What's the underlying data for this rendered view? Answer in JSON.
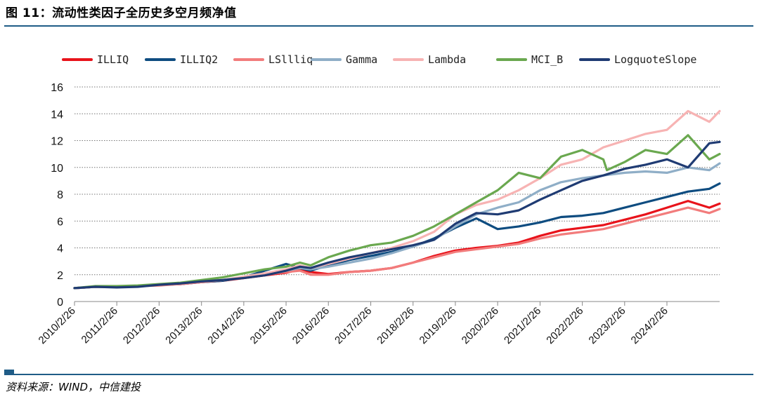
{
  "figure": {
    "title": "图 11：流动性类因子全历史多空月频净值",
    "source": "资料来源：WIND，中信建投"
  },
  "chart_data": {
    "type": "line",
    "title": "",
    "xlabel": "",
    "ylabel": "",
    "ylim": [
      0,
      16
    ],
    "yticks": [
      0,
      2,
      4,
      6,
      8,
      10,
      12,
      14,
      16
    ],
    "grid": "horizontal dotted",
    "legend_position": "top",
    "x_start": "2010-02-26",
    "x_end": "2025-05-26",
    "x_tick_labels": [
      "2010/2/26",
      "2011/2/26",
      "2012/2/26",
      "2013/2/26",
      "2014/2/26",
      "2015/2/26",
      "2016/2/26",
      "2017/2/26",
      "2018/2/26",
      "2019/2/26",
      "2020/2/26",
      "2021/2/26",
      "2022/2/26",
      "2023/2/26",
      "2024/2/26"
    ],
    "series": [
      {
        "name": "ILLIQ",
        "color": "#e8131b",
        "points": [
          [
            "2010-02",
            1.0
          ],
          [
            "2010-08",
            1.1
          ],
          [
            "2011-02",
            1.1
          ],
          [
            "2011-08",
            1.15
          ],
          [
            "2012-02",
            1.25
          ],
          [
            "2012-08",
            1.3
          ],
          [
            "2013-02",
            1.45
          ],
          [
            "2013-08",
            1.55
          ],
          [
            "2014-02",
            1.75
          ],
          [
            "2014-08",
            1.95
          ],
          [
            "2015-02",
            2.15
          ],
          [
            "2015-06",
            2.4
          ],
          [
            "2015-09",
            2.2
          ],
          [
            "2016-02",
            2.05
          ],
          [
            "2016-08",
            2.2
          ],
          [
            "2017-02",
            2.3
          ],
          [
            "2017-08",
            2.5
          ],
          [
            "2018-02",
            2.9
          ],
          [
            "2018-08",
            3.4
          ],
          [
            "2019-02",
            3.8
          ],
          [
            "2019-08",
            4.0
          ],
          [
            "2020-02",
            4.15
          ],
          [
            "2020-08",
            4.4
          ],
          [
            "2021-02",
            4.9
          ],
          [
            "2021-08",
            5.3
          ],
          [
            "2022-02",
            5.5
          ],
          [
            "2022-08",
            5.7
          ],
          [
            "2023-02",
            6.1
          ],
          [
            "2023-08",
            6.5
          ],
          [
            "2024-02",
            7.0
          ],
          [
            "2024-08",
            7.5
          ],
          [
            "2025-02",
            7.0
          ],
          [
            "2025-05",
            7.3
          ]
        ]
      },
      {
        "name": "ILLIQ2",
        "color": "#0e4c80",
        "points": [
          [
            "2010-02",
            1.0
          ],
          [
            "2010-08",
            1.1
          ],
          [
            "2011-02",
            1.1
          ],
          [
            "2011-08",
            1.15
          ],
          [
            "2012-02",
            1.25
          ],
          [
            "2012-08",
            1.3
          ],
          [
            "2013-02",
            1.45
          ],
          [
            "2013-08",
            1.55
          ],
          [
            "2014-02",
            1.8
          ],
          [
            "2014-08",
            2.3
          ],
          [
            "2015-02",
            2.8
          ],
          [
            "2015-06",
            2.5
          ],
          [
            "2015-09",
            2.3
          ],
          [
            "2016-02",
            2.7
          ],
          [
            "2016-08",
            3.1
          ],
          [
            "2017-02",
            3.4
          ],
          [
            "2017-08",
            3.7
          ],
          [
            "2018-02",
            4.1
          ],
          [
            "2018-08",
            4.7
          ],
          [
            "2019-02",
            5.5
          ],
          [
            "2019-08",
            6.2
          ],
          [
            "2020-02",
            5.4
          ],
          [
            "2020-08",
            5.6
          ],
          [
            "2021-02",
            5.9
          ],
          [
            "2021-08",
            6.3
          ],
          [
            "2022-02",
            6.4
          ],
          [
            "2022-08",
            6.6
          ],
          [
            "2023-02",
            7.0
          ],
          [
            "2023-08",
            7.4
          ],
          [
            "2024-02",
            7.8
          ],
          [
            "2024-08",
            8.2
          ],
          [
            "2025-02",
            8.4
          ],
          [
            "2025-05",
            8.8
          ]
        ]
      },
      {
        "name": "LSllliq",
        "color": "#f27c7c",
        "points": [
          [
            "2010-02",
            1.0
          ],
          [
            "2010-08",
            1.1
          ],
          [
            "2011-02",
            1.1
          ],
          [
            "2011-08",
            1.15
          ],
          [
            "2012-02",
            1.2
          ],
          [
            "2012-08",
            1.3
          ],
          [
            "2013-02",
            1.45
          ],
          [
            "2013-08",
            1.6
          ],
          [
            "2014-02",
            1.8
          ],
          [
            "2014-08",
            2.0
          ],
          [
            "2015-02",
            2.2
          ],
          [
            "2015-06",
            2.3
          ],
          [
            "2015-09",
            2.0
          ],
          [
            "2016-02",
            2.0
          ],
          [
            "2016-08",
            2.2
          ],
          [
            "2017-02",
            2.3
          ],
          [
            "2017-08",
            2.5
          ],
          [
            "2018-02",
            2.9
          ],
          [
            "2018-08",
            3.3
          ],
          [
            "2019-02",
            3.7
          ],
          [
            "2019-08",
            3.9
          ],
          [
            "2020-02",
            4.1
          ],
          [
            "2020-08",
            4.3
          ],
          [
            "2021-02",
            4.7
          ],
          [
            "2021-08",
            5.0
          ],
          [
            "2022-02",
            5.2
          ],
          [
            "2022-08",
            5.4
          ],
          [
            "2023-02",
            5.8
          ],
          [
            "2023-08",
            6.2
          ],
          [
            "2024-02",
            6.6
          ],
          [
            "2024-08",
            7.0
          ],
          [
            "2025-02",
            6.6
          ],
          [
            "2025-05",
            6.9
          ]
        ]
      },
      {
        "name": "Gamma",
        "color": "#8faec7",
        "points": [
          [
            "2010-02",
            1.0
          ],
          [
            "2010-08",
            1.1
          ],
          [
            "2011-02",
            1.1
          ],
          [
            "2011-08",
            1.15
          ],
          [
            "2012-02",
            1.25
          ],
          [
            "2012-08",
            1.35
          ],
          [
            "2013-02",
            1.5
          ],
          [
            "2013-08",
            1.6
          ],
          [
            "2014-02",
            1.8
          ],
          [
            "2014-08",
            2.0
          ],
          [
            "2015-02",
            2.3
          ],
          [
            "2015-06",
            2.5
          ],
          [
            "2015-09",
            2.4
          ],
          [
            "2016-02",
            2.6
          ],
          [
            "2016-08",
            2.9
          ],
          [
            "2017-02",
            3.2
          ],
          [
            "2017-08",
            3.6
          ],
          [
            "2018-02",
            4.1
          ],
          [
            "2018-08",
            4.6
          ],
          [
            "2019-02",
            5.6
          ],
          [
            "2019-08",
            6.5
          ],
          [
            "2020-02",
            7.0
          ],
          [
            "2020-08",
            7.4
          ],
          [
            "2021-02",
            8.3
          ],
          [
            "2021-08",
            8.9
          ],
          [
            "2022-02",
            9.2
          ],
          [
            "2022-08",
            9.4
          ],
          [
            "2023-02",
            9.6
          ],
          [
            "2023-08",
            9.7
          ],
          [
            "2024-02",
            9.6
          ],
          [
            "2024-08",
            10.0
          ],
          [
            "2025-02",
            9.8
          ],
          [
            "2025-05",
            10.3
          ]
        ]
      },
      {
        "name": "Lambda",
        "color": "#f7b3b3",
        "points": [
          [
            "2010-02",
            1.0
          ],
          [
            "2010-08",
            1.1
          ],
          [
            "2011-02",
            1.1
          ],
          [
            "2011-08",
            1.15
          ],
          [
            "2012-02",
            1.25
          ],
          [
            "2012-08",
            1.35
          ],
          [
            "2013-02",
            1.5
          ],
          [
            "2013-08",
            1.6
          ],
          [
            "2014-02",
            1.85
          ],
          [
            "2014-08",
            2.1
          ],
          [
            "2015-02",
            2.4
          ],
          [
            "2015-06",
            2.7
          ],
          [
            "2015-09",
            2.5
          ],
          [
            "2016-02",
            2.8
          ],
          [
            "2016-08",
            3.2
          ],
          [
            "2017-02",
            3.6
          ],
          [
            "2017-08",
            4.0
          ],
          [
            "2018-02",
            4.5
          ],
          [
            "2018-08",
            5.2
          ],
          [
            "2019-02",
            6.5
          ],
          [
            "2019-08",
            7.2
          ],
          [
            "2020-02",
            7.6
          ],
          [
            "2020-08",
            8.3
          ],
          [
            "2021-02",
            9.2
          ],
          [
            "2021-08",
            10.2
          ],
          [
            "2022-02",
            10.6
          ],
          [
            "2022-08",
            11.5
          ],
          [
            "2023-02",
            12.0
          ],
          [
            "2023-08",
            12.5
          ],
          [
            "2024-02",
            12.8
          ],
          [
            "2024-08",
            14.2
          ],
          [
            "2025-02",
            13.4
          ],
          [
            "2025-05",
            14.2
          ]
        ]
      },
      {
        "name": "MCI_B",
        "color": "#6aa84f",
        "points": [
          [
            "2010-02",
            1.0
          ],
          [
            "2010-08",
            1.15
          ],
          [
            "2011-02",
            1.15
          ],
          [
            "2011-08",
            1.2
          ],
          [
            "2012-02",
            1.3
          ],
          [
            "2012-08",
            1.4
          ],
          [
            "2013-02",
            1.6
          ],
          [
            "2013-08",
            1.8
          ],
          [
            "2014-02",
            2.1
          ],
          [
            "2014-08",
            2.4
          ],
          [
            "2015-02",
            2.6
          ],
          [
            "2015-06",
            2.9
          ],
          [
            "2015-09",
            2.7
          ],
          [
            "2016-02",
            3.3
          ],
          [
            "2016-08",
            3.8
          ],
          [
            "2017-02",
            4.2
          ],
          [
            "2017-08",
            4.4
          ],
          [
            "2018-02",
            4.9
          ],
          [
            "2018-08",
            5.6
          ],
          [
            "2019-02",
            6.5
          ],
          [
            "2019-08",
            7.4
          ],
          [
            "2020-02",
            8.3
          ],
          [
            "2020-08",
            9.6
          ],
          [
            "2021-02",
            9.2
          ],
          [
            "2021-08",
            10.8
          ],
          [
            "2022-02",
            11.3
          ],
          [
            "2022-08",
            10.6
          ],
          [
            "2022-09",
            9.8
          ],
          [
            "2023-02",
            10.4
          ],
          [
            "2023-08",
            11.3
          ],
          [
            "2024-02",
            11.0
          ],
          [
            "2024-08",
            12.4
          ],
          [
            "2025-02",
            10.6
          ],
          [
            "2025-05",
            11.0
          ]
        ]
      },
      {
        "name": "LogquoteSlope",
        "color": "#1f3b73",
        "points": [
          [
            "2010-02",
            1.0
          ],
          [
            "2010-08",
            1.1
          ],
          [
            "2011-02",
            1.05
          ],
          [
            "2011-08",
            1.1
          ],
          [
            "2012-02",
            1.25
          ],
          [
            "2012-08",
            1.35
          ],
          [
            "2013-02",
            1.5
          ],
          [
            "2013-08",
            1.6
          ],
          [
            "2014-02",
            1.75
          ],
          [
            "2014-08",
            1.95
          ],
          [
            "2015-02",
            2.3
          ],
          [
            "2015-06",
            2.6
          ],
          [
            "2015-09",
            2.5
          ],
          [
            "2016-02",
            2.9
          ],
          [
            "2016-08",
            3.3
          ],
          [
            "2017-02",
            3.6
          ],
          [
            "2017-08",
            3.9
          ],
          [
            "2018-02",
            4.2
          ],
          [
            "2018-08",
            4.6
          ],
          [
            "2019-02",
            5.8
          ],
          [
            "2019-08",
            6.6
          ],
          [
            "2020-02",
            6.5
          ],
          [
            "2020-08",
            6.8
          ],
          [
            "2021-02",
            7.6
          ],
          [
            "2021-08",
            8.3
          ],
          [
            "2022-02",
            9.0
          ],
          [
            "2022-08",
            9.4
          ],
          [
            "2023-02",
            9.9
          ],
          [
            "2023-08",
            10.2
          ],
          [
            "2024-02",
            10.6
          ],
          [
            "2024-08",
            10.0
          ],
          [
            "2025-02",
            11.8
          ],
          [
            "2025-05",
            11.9
          ]
        ]
      }
    ]
  }
}
